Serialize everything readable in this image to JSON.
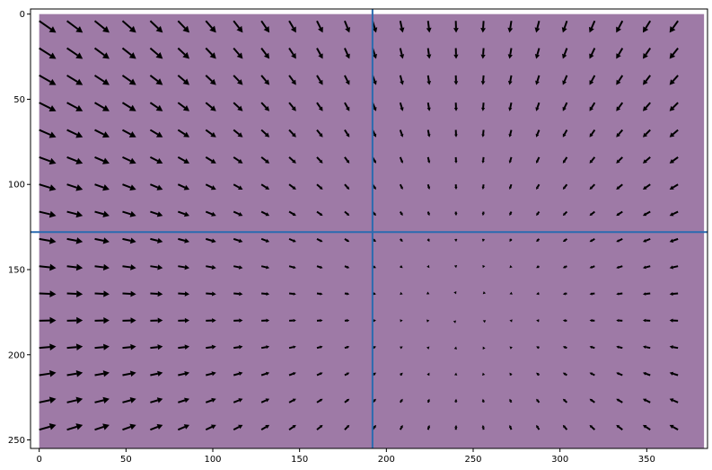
{
  "chart_data": {
    "type": "quiver",
    "xlim": [
      -5,
      385
    ],
    "ylim": [
      255,
      -3
    ],
    "x_ticks": [
      0,
      50,
      100,
      150,
      200,
      250,
      300,
      350
    ],
    "y_ticks": [
      0,
      50,
      100,
      150,
      200,
      250
    ],
    "x_tick_labels": [
      "0",
      "50",
      "100",
      "150",
      "200",
      "250",
      "300",
      "350"
    ],
    "y_tick_labels": [
      "0",
      "50",
      "100",
      "150",
      "200",
      "250"
    ],
    "background": {
      "x_range": [
        0,
        383
      ],
      "y_range": [
        0,
        255
      ],
      "color": "#9e7aa6"
    },
    "grid": false,
    "vector_field": {
      "x_start": 0,
      "x_step": 16,
      "x_count": 24,
      "y_start": 4,
      "y_step": 16,
      "y_count": 16,
      "center": [
        245,
        175
      ],
      "max_arrow_length": 23,
      "color": "#000000"
    },
    "reference_lines": [
      {
        "orientation": "vertical",
        "value": 192,
        "color": "#2a6bb0"
      },
      {
        "orientation": "horizontal",
        "value": 128,
        "color": "#2a6bb0"
      }
    ]
  },
  "colors": {
    "background_rect": "#9e7aa6",
    "arrow": "#000000",
    "crosshair": "#2a6bb0"
  }
}
